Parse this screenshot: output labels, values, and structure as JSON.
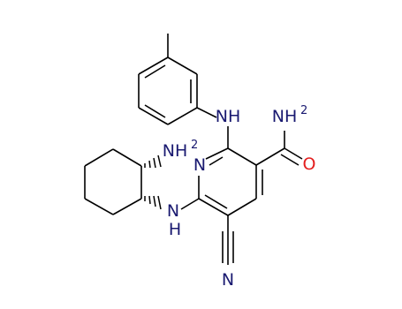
{
  "nodes": [
    {
      "label": "NH"
    },
    {
      "label": "NH",
      "subscript": "2"
    },
    {
      "label": "O"
    },
    {
      "label": "N"
    },
    {
      "label": "NH",
      "subscript": "2"
    },
    {
      "label": "N",
      "sublabel": "H"
    },
    {
      "label": "N"
    }
  ]
}
